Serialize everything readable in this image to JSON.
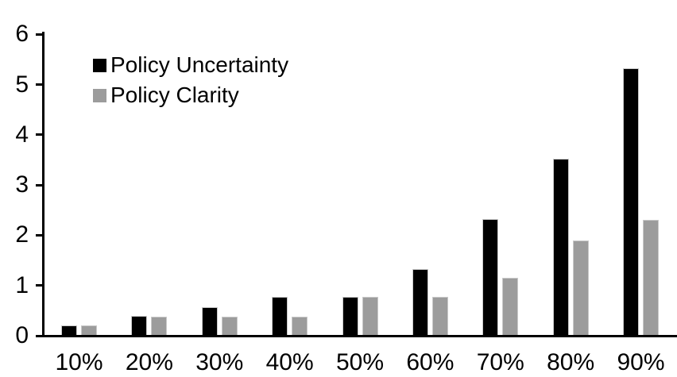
{
  "chart_data": {
    "type": "bar",
    "title": "",
    "categories": [
      "10%",
      "20%",
      "30%",
      "40%",
      "50%",
      "60%",
      "70%",
      "80%",
      "90%"
    ],
    "series": [
      {
        "name": "Policy Uncertainty",
        "color": "#000000",
        "values": [
          0.2,
          0.4,
          0.57,
          0.77,
          0.78,
          1.33,
          2.32,
          3.52,
          5.33
        ]
      },
      {
        "name": "Policy Clarity",
        "color": "#9c9c9c",
        "values": [
          0.2,
          0.38,
          0.38,
          0.38,
          0.78,
          0.78,
          1.15,
          1.9,
          2.3
        ]
      }
    ],
    "xlabel": "",
    "ylabel": "",
    "ylim": [
      0,
      6
    ],
    "yticks": [
      "0",
      "1",
      "2",
      "3",
      "4",
      "5",
      "6"
    ],
    "grid": false,
    "legend_position": "top-left",
    "axis_color": "#000000",
    "background_color": "#ffffff"
  }
}
